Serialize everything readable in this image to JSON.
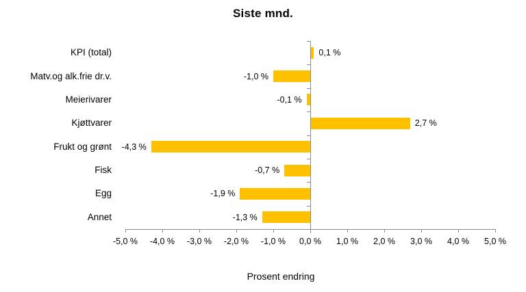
{
  "chart_data": {
    "type": "bar",
    "orientation": "horizontal",
    "title": "Siste mnd.",
    "xlabel": "Prosent endring",
    "ylabel": "",
    "categories": [
      "KPI (total)",
      "Matv.og alk.frie dr.v.",
      "Meierivarer",
      "Kjøttvarer",
      "Frukt og grønt",
      "Fisk",
      "Egg",
      "Annet"
    ],
    "values": [
      0.1,
      -1.0,
      -0.1,
      2.7,
      -4.3,
      -0.7,
      -1.9,
      -1.3
    ],
    "value_labels": [
      "0,1 %",
      "-1,0 %",
      "-0,1 %",
      "2,7 %",
      "-4,3 %",
      "-0,7 %",
      "-1,9 %",
      "-1,3 %"
    ],
    "xlim": [
      -5,
      5
    ],
    "x_ticks": [
      -5,
      -4,
      -3,
      -2,
      -1,
      0,
      1,
      2,
      3,
      4,
      5
    ],
    "x_tick_labels": [
      "-5,0 %",
      "-4,0 %",
      "-3,0 %",
      "-2,0 %",
      "-1,0 %",
      "0,0 %",
      "1,0 %",
      "2,0 %",
      "3,0 %",
      "4,0 %",
      "5,0 %"
    ],
    "grid": false,
    "legend": null,
    "bar_color": "#FFC000",
    "axis_color": "#8A8A8A",
    "text_color": "#000000"
  }
}
